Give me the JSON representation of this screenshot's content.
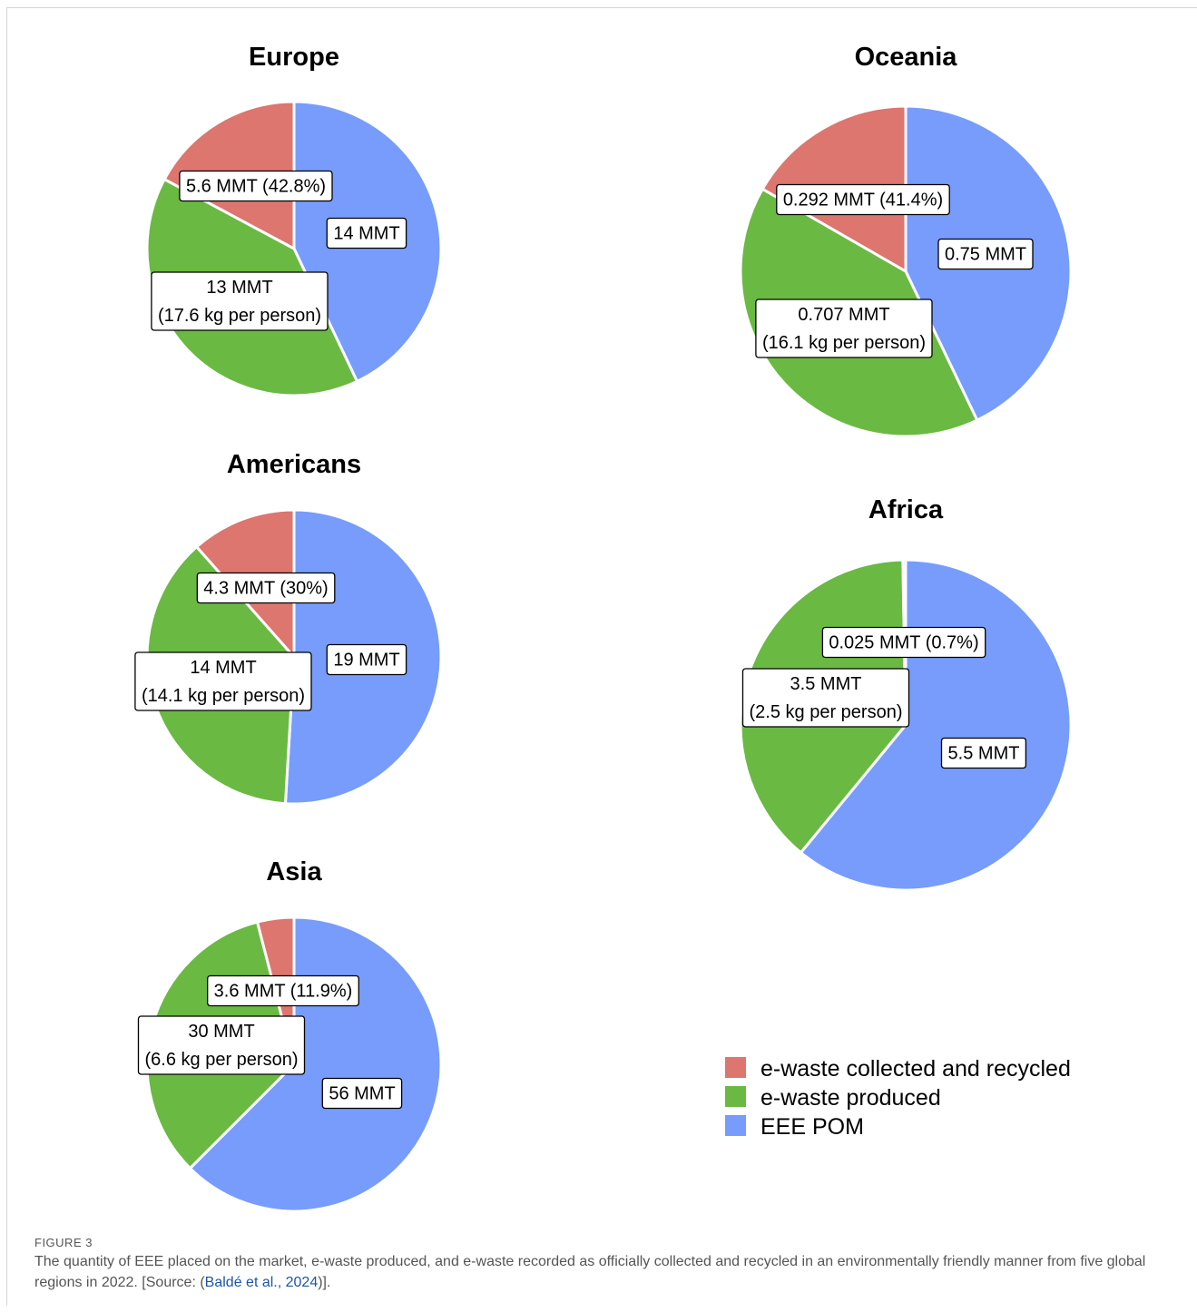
{
  "colors": {
    "collected_recycled": "#dc766f",
    "produced": "#6ab943",
    "eee_pom": "#779cfc"
  },
  "legend": {
    "items": [
      {
        "label": "e-waste collected and recycled",
        "color": "#dc766f"
      },
      {
        "label": "e-waste produced",
        "color": "#6ab943"
      },
      {
        "label": "EEE POM",
        "color": "#779cfc"
      }
    ]
  },
  "chart_data": [
    {
      "type": "pie",
      "title": "Europe",
      "series": [
        {
          "name": "EEE POM",
          "value": 14,
          "label_lines": [
            "14 MMT"
          ]
        },
        {
          "name": "e-waste produced",
          "value": 13,
          "label_lines": [
            "13 MMT",
            "(17.6 kg per person)"
          ]
        },
        {
          "name": "e-waste collected and recycled",
          "value": 5.6,
          "label_lines": [
            "5.6 MMT (42.8%)"
          ]
        }
      ]
    },
    {
      "type": "pie",
      "title": "Oceania",
      "series": [
        {
          "name": "EEE POM",
          "value": 0.75,
          "label_lines": [
            "0.75 MMT"
          ]
        },
        {
          "name": "e-waste produced",
          "value": 0.707,
          "label_lines": [
            "0.707 MMT",
            "(16.1 kg per person)"
          ]
        },
        {
          "name": "e-waste collected and recycled",
          "value": 0.292,
          "label_lines": [
            "0.292 MMT (41.4%)"
          ]
        }
      ]
    },
    {
      "type": "pie",
      "title": "Americans",
      "series": [
        {
          "name": "EEE POM",
          "value": 19,
          "label_lines": [
            "19 MMT"
          ]
        },
        {
          "name": "e-waste produced",
          "value": 14,
          "label_lines": [
            "14 MMT",
            "(14.1 kg per person)"
          ]
        },
        {
          "name": "e-waste collected and recycled",
          "value": 4.3,
          "label_lines": [
            "4.3 MMT (30%)"
          ]
        }
      ]
    },
    {
      "type": "pie",
      "title": "Africa",
      "series": [
        {
          "name": "EEE POM",
          "value": 5.5,
          "label_lines": [
            "5.5 MMT"
          ]
        },
        {
          "name": "e-waste produced",
          "value": 3.5,
          "label_lines": [
            "3.5 MMT",
            "(2.5 kg per person)"
          ]
        },
        {
          "name": "e-waste collected and recycled",
          "value": 0.025,
          "label_lines": [
            "0.025 MMT (0.7%)"
          ]
        }
      ]
    },
    {
      "type": "pie",
      "title": "Asia",
      "series": [
        {
          "name": "EEE POM",
          "value": 56,
          "label_lines": [
            "56 MMT"
          ]
        },
        {
          "name": "e-waste produced",
          "value": 30,
          "label_lines": [
            "30 MMT",
            "(6.6 kg per person)"
          ]
        },
        {
          "name": "e-waste collected and recycled",
          "value": 3.6,
          "label_lines": [
            "3.6 MMT (11.9%)"
          ]
        }
      ]
    }
  ],
  "caption": {
    "label": "FIGURE 3",
    "text_before": "The quantity of EEE placed on the market, e-waste produced, and e-waste recorded as officially collected and recycled in an environmentally friendly manner from five global regions in 2022. [Source: (",
    "citation": "Baldé et al., 2024",
    "text_after": ")]."
  }
}
